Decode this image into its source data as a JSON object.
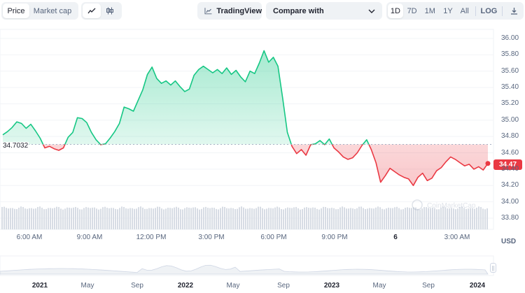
{
  "toolbar": {
    "view_tabs": [
      "Price",
      "Market cap"
    ],
    "chart_style_icons": [
      "line-chart-icon",
      "candlestick-icon"
    ],
    "tradingview_label": "TradingView",
    "compare_label": "Compare with",
    "ranges": [
      "1D",
      "7D",
      "1M",
      "1Y",
      "All"
    ],
    "active_range": "1D",
    "log_label": "LOG",
    "download_icon": "download-icon"
  },
  "chart_data": {
    "type": "area",
    "title": "",
    "ylabel": "USD",
    "ylim": [
      33.7,
      36.05
    ],
    "y_ticks": [
      "36.00",
      "35.80",
      "35.60",
      "35.40",
      "35.20",
      "35.00",
      "34.80",
      "34.60",
      "34.40",
      "34.20",
      "34.00",
      "33.80"
    ],
    "x_ticks": [
      "6:00 AM",
      "9:00 AM",
      "12:00 PM",
      "3:00 PM",
      "6:00 PM",
      "9:00 PM",
      "6",
      "3:00 AM"
    ],
    "bold_x_ticks": [
      "6"
    ],
    "reference_price": "34.7032",
    "current_price": "34.47",
    "reference_value": 34.7032,
    "points_count": 90,
    "prices": [
      34.82,
      34.86,
      34.91,
      34.98,
      34.96,
      34.9,
      34.95,
      34.87,
      34.78,
      34.66,
      34.68,
      34.65,
      34.63,
      34.66,
      34.79,
      34.85,
      35.03,
      35.02,
      34.97,
      34.85,
      34.76,
      34.7,
      34.71,
      34.78,
      34.86,
      34.96,
      35.16,
      35.14,
      35.11,
      35.24,
      35.37,
      35.56,
      35.65,
      35.51,
      35.45,
      35.48,
      35.43,
      35.48,
      35.41,
      35.35,
      35.38,
      35.55,
      35.62,
      35.66,
      35.62,
      35.58,
      35.62,
      35.57,
      35.64,
      35.56,
      35.61,
      35.53,
      35.47,
      35.6,
      35.57,
      35.7,
      35.85,
      35.71,
      35.77,
      35.66,
      35.27,
      34.85,
      34.68,
      34.59,
      34.64,
      34.57,
      34.7,
      34.71,
      34.75,
      34.7,
      34.77,
      34.66,
      34.61,
      34.55,
      34.52,
      34.54,
      34.6,
      34.69,
      34.76,
      34.64,
      34.48,
      34.24,
      34.32,
      34.41,
      34.37,
      34.33,
      34.3,
      34.28,
      34.2,
      34.3
    ],
    "tail_prices": [
      34.35,
      34.26,
      34.29,
      34.38,
      34.42,
      34.49,
      34.55,
      34.52,
      34.48,
      34.44,
      34.46,
      34.4,
      34.43,
      34.39,
      34.47
    ],
    "series_colors": {
      "above": "#16c784",
      "below": "#ea3943"
    },
    "volume": {
      "level": 0.82
    },
    "navigator_ticks": [
      "2021",
      "May",
      "Sep",
      "2022",
      "May",
      "Sep",
      "2023",
      "May",
      "Sep",
      "2024"
    ],
    "bold_navigator_ticks": [
      "2021",
      "2022",
      "2023",
      "2024"
    ]
  },
  "watermark": "CoinMarketCap"
}
